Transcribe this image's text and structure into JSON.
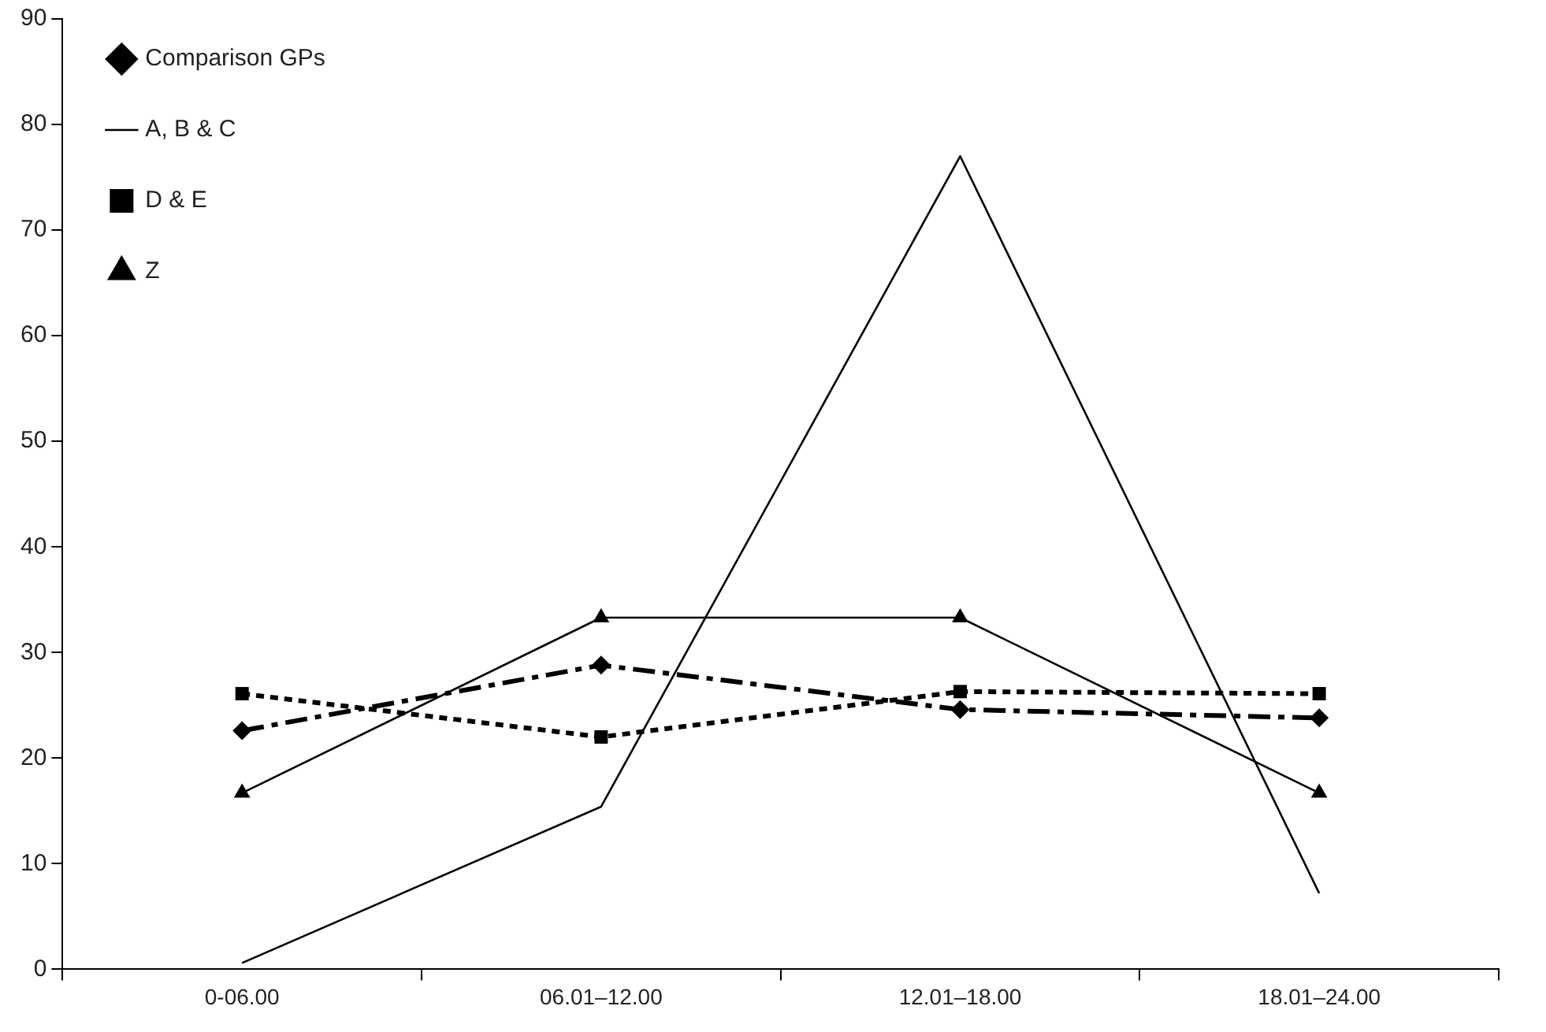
{
  "chart_data": {
    "type": "line",
    "categories": [
      "0-06.00",
      "06.01–12.00",
      "12.01–18.00",
      "18.01–24.00"
    ],
    "series": [
      {
        "name": "Comparison GPs",
        "color": "#000000",
        "values": [
          22.6,
          28.8,
          24.6,
          23.8
        ],
        "marker": "diamond",
        "line_style": "dashdot"
      },
      {
        "name": "A, B & C",
        "color": "#000000",
        "values": [
          0.6,
          15.4,
          77,
          7.2
        ],
        "marker": "none",
        "line_style": "solid"
      },
      {
        "name": "D & E",
        "color": "#000000",
        "values": [
          26.1,
          22,
          26.3,
          26.1
        ],
        "marker": "square",
        "line_style": "dotted"
      },
      {
        "name": "Z",
        "color": "#000000",
        "values": [
          16.7,
          33.3,
          33.3,
          16.7
        ],
        "marker": "triangle",
        "line_style": "solid"
      }
    ],
    "ylim": [
      0,
      90
    ],
    "yticks": [
      0,
      10,
      20,
      30,
      40,
      50,
      60,
      70,
      80,
      90
    ],
    "grid": false,
    "legend": "top left"
  }
}
